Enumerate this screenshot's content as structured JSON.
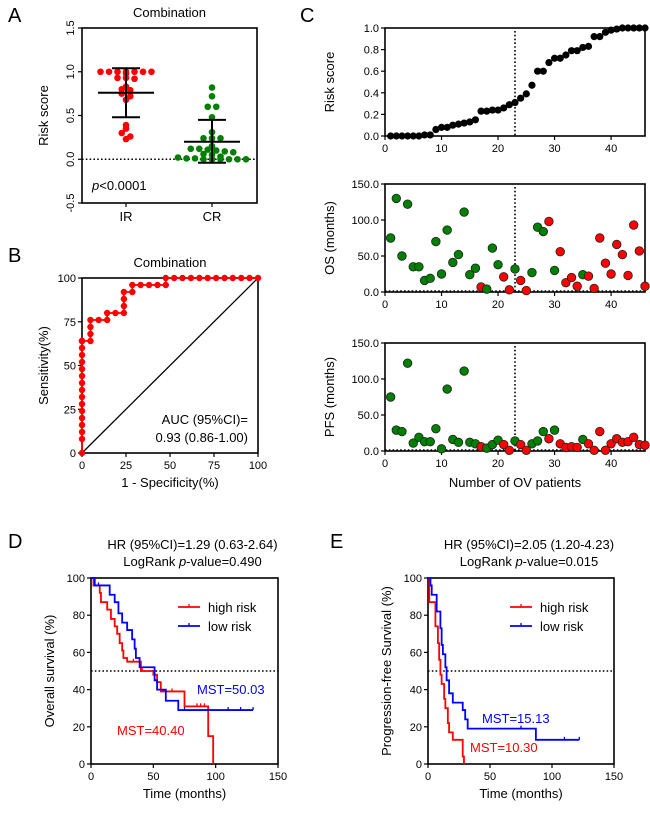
{
  "panels": {
    "A": "A",
    "B": "B",
    "C": "C",
    "D": "D",
    "E": "E"
  },
  "chart_data": [
    {
      "id": "A",
      "type": "scatter",
      "title": "Combination",
      "xlabel": "",
      "ylabel": "Risk score",
      "categories": [
        "IR",
        "CR"
      ],
      "ylim": [
        -0.5,
        1.5
      ],
      "yticks": [
        "-0.5",
        "0.0",
        "0.5",
        "1.0",
        "1.5"
      ],
      "annotation": "p<0.0001",
      "annotation_italic": "p",
      "annotation_rest": "<0.0001",
      "reference_line_y": 0,
      "series": [
        {
          "name": "IR",
          "color": "#ff0000",
          "values": [
            1.0,
            1.0,
            1.0,
            1.0,
            1.0,
            1.0,
            1.0,
            0.98,
            0.93,
            0.93,
            0.92,
            0.83,
            0.8,
            0.79,
            0.75,
            0.72,
            0.68,
            0.39,
            0.35,
            0.3,
            0.26,
            0.23
          ],
          "mean": 0.76,
          "sd_low": 0.48,
          "sd_high": 1.04
        },
        {
          "name": "CR",
          "color": "#008000",
          "values": [
            0.82,
            0.72,
            0.6,
            0.6,
            0.48,
            0.31,
            0.24,
            0.24,
            0.24,
            0.15,
            0.12,
            0.12,
            0.11,
            0.1,
            0.09,
            0.08,
            0.06,
            0.05,
            0.03,
            0.02,
            0.01,
            0.01,
            0.0,
            0.0,
            0.0,
            0.0,
            0.0,
            0.0
          ],
          "mean": 0.2,
          "sd_low": -0.04,
          "sd_high": 0.45
        }
      ]
    },
    {
      "id": "B",
      "type": "line",
      "title": "Combination",
      "xlabel": "1 - Specificity(%)",
      "ylabel": "Sensitivity(%)",
      "xlim": [
        0,
        100
      ],
      "ylim": [
        0,
        100
      ],
      "xticks": [
        "0",
        "25",
        "50",
        "75",
        "100"
      ],
      "yticks": [
        "0",
        "25",
        "50",
        "75",
        "100"
      ],
      "annotation_lines": [
        "AUC (95%CI)=",
        "0.93 (0.86-1.00)"
      ],
      "color": "#ff0000",
      "x": [
        0,
        0,
        0,
        0,
        0,
        0,
        0,
        0,
        0,
        0,
        0,
        0,
        0,
        0,
        0,
        0,
        0,
        0,
        4.8,
        4.8,
        4.8,
        4.8,
        9.5,
        14.3,
        14.3,
        19,
        23.8,
        23.8,
        23.8,
        23.8,
        28.6,
        28.6,
        33.3,
        38.1,
        42.9,
        47.6,
        47.6,
        52.4,
        57.1,
        61.9,
        66.7,
        71.4,
        76.2,
        81,
        85.7,
        90.5,
        95.2,
        100
      ],
      "y": [
        0,
        8,
        12,
        16,
        20,
        24,
        28,
        32,
        36,
        40,
        44,
        48,
        52,
        56,
        60,
        64,
        64,
        64,
        64,
        68,
        72,
        76,
        76,
        76,
        80,
        80,
        80,
        84,
        88,
        92,
        92,
        96,
        96,
        96,
        96,
        96,
        100,
        100,
        100,
        100,
        100,
        100,
        100,
        100,
        100,
        100,
        100,
        100
      ]
    },
    {
      "id": "C1",
      "type": "scatter",
      "xlabel": "",
      "ylabel": "Risk score",
      "xlim": [
        0,
        46
      ],
      "ylim": [
        0,
        1.0
      ],
      "xticks": [
        "0",
        "10",
        "20",
        "30",
        "40"
      ],
      "yticks": [
        "0.0",
        "0.2",
        "0.4",
        "0.6",
        "0.8",
        "1.0"
      ],
      "cutoff_x": 23,
      "color": "#000000",
      "x": [
        1,
        2,
        3,
        4,
        5,
        6,
        7,
        8,
        9,
        10,
        11,
        12,
        13,
        14,
        15,
        16,
        17,
        18,
        19,
        20,
        21,
        22,
        23,
        24,
        25,
        26,
        27,
        28,
        29,
        30,
        31,
        32,
        33,
        34,
        35,
        36,
        37,
        38,
        39,
        40,
        41,
        42,
        43,
        44,
        45,
        46
      ],
      "values": [
        0,
        0,
        0,
        0,
        0,
        0,
        0.01,
        0.01,
        0.06,
        0.08,
        0.08,
        0.1,
        0.11,
        0.12,
        0.13,
        0.15,
        0.23,
        0.23,
        0.24,
        0.24,
        0.26,
        0.29,
        0.31,
        0.35,
        0.39,
        0.47,
        0.6,
        0.6,
        0.68,
        0.72,
        0.72,
        0.75,
        0.79,
        0.79,
        0.82,
        0.83,
        0.92,
        0.92,
        0.96,
        0.98,
        0.99,
        1.0,
        1.0,
        1.0,
        1.0,
        1.0
      ]
    },
    {
      "id": "C2",
      "type": "scatter",
      "xlabel": "",
      "ylabel": "OS (months)",
      "xlim": [
        0,
        46
      ],
      "ylim": [
        0,
        150
      ],
      "yticks": [
        "0.0",
        "50.0",
        "100.0",
        "150.0"
      ],
      "cutoff_x": 23,
      "x": [
        1,
        2,
        3,
        4,
        5,
        6,
        7,
        8,
        9,
        10,
        11,
        12,
        13,
        14,
        15,
        16,
        17,
        18,
        19,
        20,
        21,
        22,
        23,
        24,
        25,
        26,
        27,
        28,
        29,
        30,
        31,
        32,
        33,
        34,
        35,
        36,
        37,
        38,
        39,
        40,
        41,
        42,
        43,
        44,
        45,
        46
      ],
      "values": [
        75,
        130,
        50,
        122,
        35,
        35,
        16,
        19,
        70,
        25,
        86,
        41,
        52,
        111,
        24,
        33,
        7,
        4,
        61,
        38,
        21,
        3,
        32,
        16,
        2,
        27,
        90,
        84,
        98,
        30,
        56,
        13,
        20,
        8,
        24,
        22,
        5,
        75,
        40,
        25,
        66,
        52,
        23,
        93,
        57,
        8
      ],
      "colors": [
        "g",
        "g",
        "g",
        "g",
        "g",
        "g",
        "g",
        "g",
        "g",
        "g",
        "g",
        "g",
        "g",
        "g",
        "g",
        "g",
        "r",
        "g",
        "g",
        "g",
        "r",
        "r",
        "g",
        "r",
        "r",
        "g",
        "g",
        "g",
        "r",
        "g",
        "r",
        "r",
        "r",
        "r",
        "g",
        "r",
        "r",
        "r",
        "r",
        "r",
        "r",
        "r",
        "r",
        "r",
        "r",
        "r"
      ],
      "color_map": {
        "g": "#008000",
        "r": "#ff0000"
      }
    },
    {
      "id": "C3",
      "type": "scatter",
      "xlabel": "Number of OV patients",
      "ylabel": "PFS (months)",
      "xlim": [
        0,
        46
      ],
      "ylim": [
        0,
        150
      ],
      "xticks": [
        "0",
        "10",
        "20",
        "30",
        "40"
      ],
      "yticks": [
        "0.0",
        "50.0",
        "100.0",
        "150.0"
      ],
      "cutoff_x": 23,
      "x": [
        1,
        2,
        3,
        4,
        5,
        6,
        7,
        8,
        9,
        10,
        11,
        12,
        13,
        14,
        15,
        16,
        17,
        18,
        19,
        20,
        21,
        22,
        23,
        24,
        25,
        26,
        27,
        28,
        29,
        30,
        31,
        32,
        33,
        34,
        35,
        36,
        37,
        38,
        39,
        40,
        41,
        42,
        43,
        44,
        45,
        46
      ],
      "values": [
        75,
        29,
        27,
        122,
        11,
        19,
        13,
        13,
        31,
        3,
        86,
        16,
        12,
        111,
        12,
        10,
        6,
        4,
        9,
        15,
        9,
        1,
        14,
        9,
        1,
        10,
        14,
        27,
        17,
        29,
        10,
        5,
        6,
        5,
        16,
        10,
        1,
        27,
        1,
        10,
        17,
        12,
        13,
        19,
        9,
        8
      ],
      "colors": [
        "g",
        "g",
        "g",
        "g",
        "g",
        "g",
        "g",
        "g",
        "g",
        "g",
        "g",
        "g",
        "g",
        "g",
        "g",
        "g",
        "r",
        "g",
        "g",
        "g",
        "r",
        "r",
        "g",
        "r",
        "r",
        "g",
        "g",
        "g",
        "r",
        "g",
        "r",
        "r",
        "r",
        "r",
        "g",
        "r",
        "r",
        "r",
        "r",
        "r",
        "r",
        "r",
        "r",
        "r",
        "r",
        "r"
      ],
      "color_map": {
        "g": "#008000",
        "r": "#ff0000"
      }
    },
    {
      "id": "D",
      "type": "line",
      "title_lines": [
        "HR (95%CI)=1.29 (0.63-2.64)",
        "LogRank p-value=0.490"
      ],
      "title2_prefix": "LogRank ",
      "title2_italic": "p",
      "title2_suffix": "-value=0.490",
      "xlabel": "Time (months)",
      "ylabel": "Overall survival (%)",
      "xlim": [
        0,
        150
      ],
      "ylim": [
        0,
        100
      ],
      "xticks": [
        "0",
        "50",
        "100",
        "150"
      ],
      "yticks": [
        "0",
        "20",
        "40",
        "60",
        "80",
        "100"
      ],
      "reference_line_y": 50,
      "legend": [
        "high risk",
        "low risk"
      ],
      "legend_position": "top-right",
      "series": [
        {
          "name": "high risk",
          "color": "#ff0000",
          "steps": [
            [
              0,
              100
            ],
            [
              2,
              96
            ],
            [
              7,
              92
            ],
            [
              8,
              87
            ],
            [
              13,
              83
            ],
            [
              16,
              78
            ],
            [
              19,
              74
            ],
            [
              21,
              70
            ],
            [
              23,
              65
            ],
            [
              25,
              61
            ],
            [
              26,
              57
            ],
            [
              29,
              55
            ],
            [
              40,
              50
            ],
            [
              50,
              48
            ],
            [
              53,
              44
            ],
            [
              56,
              39
            ],
            [
              75,
              31
            ],
            [
              94,
              15
            ],
            [
              98,
              0
            ]
          ],
          "censor": [
            29,
            34,
            41,
            65,
            85,
            88,
            91
          ],
          "mst_label": "MST=40.40"
        },
        {
          "name": "low risk",
          "color": "#0000ff",
          "steps": [
            [
              0,
              100
            ],
            [
              3,
              96
            ],
            [
              15,
              91
            ],
            [
              19,
              87
            ],
            [
              22,
              81
            ],
            [
              25,
              76
            ],
            [
              29,
              72
            ],
            [
              33,
              67
            ],
            [
              35,
              62
            ],
            [
              36,
              57
            ],
            [
              39,
              52
            ],
            [
              51,
              45
            ],
            [
              53,
              40
            ],
            [
              60,
              34
            ],
            [
              70,
              29
            ],
            [
              130,
              29
            ]
          ],
          "censor": [
            6,
            75,
            110,
            120,
            130
          ],
          "mst_label": "MST=50.03"
        }
      ]
    },
    {
      "id": "E",
      "type": "line",
      "title_lines": [
        "HR (95%CI)=2.05 (1.20-4.23)",
        "LogRank p-value=0.015"
      ],
      "title2_prefix": "LogRank ",
      "title2_italic": "p",
      "title2_suffix": "-value=0.015",
      "xlabel": "Time (months)",
      "ylabel": "Progression-free Survival (%)",
      "xlim": [
        0,
        150
      ],
      "ylim": [
        0,
        100
      ],
      "xticks": [
        "0",
        "50",
        "100",
        "150"
      ],
      "yticks": [
        "0",
        "20",
        "40",
        "60",
        "80",
        "100"
      ],
      "reference_line_y": 50,
      "legend": [
        "high risk",
        "low risk"
      ],
      "legend_position": "top-right",
      "series": [
        {
          "name": "high risk",
          "color": "#ff0000",
          "steps": [
            [
              0,
              100
            ],
            [
              1,
              87
            ],
            [
              6,
              74
            ],
            [
              8,
              65
            ],
            [
              9,
              56
            ],
            [
              10,
              48
            ],
            [
              11,
              43
            ],
            [
              13,
              35
            ],
            [
              14,
              30
            ],
            [
              16,
              22
            ],
            [
              17,
              17
            ],
            [
              20,
              13
            ],
            [
              28,
              4
            ],
            [
              29,
              0
            ]
          ],
          "censor": [],
          "mst_label": "MST=10.30"
        },
        {
          "name": "low risk",
          "color": "#0000ff",
          "steps": [
            [
              0,
              100
            ],
            [
              2,
              96
            ],
            [
              3,
              91
            ],
            [
              7,
              82
            ],
            [
              10,
              73
            ],
            [
              11,
              64
            ],
            [
              12,
              59
            ],
            [
              14,
              52
            ],
            [
              15,
              45
            ],
            [
              17,
              38
            ],
            [
              20,
              33
            ],
            [
              28,
              29
            ],
            [
              30,
              24
            ],
            [
              32,
              19
            ],
            [
              87,
              13
            ],
            [
              122,
              13
            ]
          ],
          "censor": [
            75,
            110,
            122
          ],
          "mst_label": "MST=15.13"
        }
      ]
    }
  ]
}
